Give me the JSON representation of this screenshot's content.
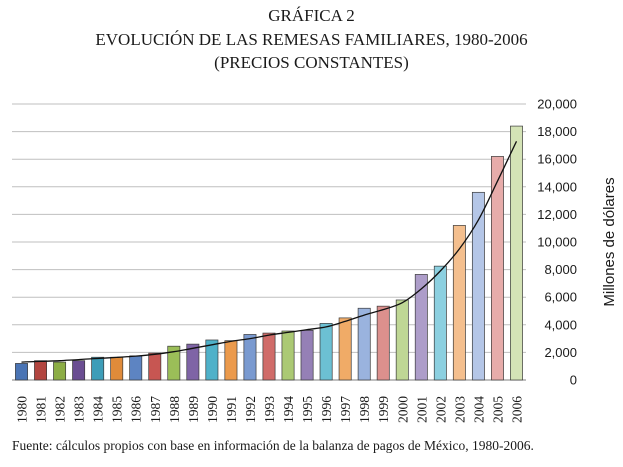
{
  "header": {
    "title_line1": "GRÁFICA 2",
    "title_line2": "EVOLUCIÓN DE LAS REMESAS FAMILIARES, 1980-2006",
    "title_line3": "(PRECIOS CONSTANTES)"
  },
  "source_note": "Fuente: cálculos propios con base en información de la balanza de pagos de México, 1980-2006.",
  "chart_data": {
    "type": "bar",
    "title": "EVOLUCIÓN DE LAS REMESAS FAMILIARES, 1980-2006",
    "xlabel": "",
    "ylabel": "Millones de dólares",
    "ylim": [
      0,
      20000
    ],
    "yticks": [
      0,
      2000,
      4000,
      6000,
      8000,
      10000,
      12000,
      14000,
      16000,
      18000,
      20000
    ],
    "ytick_labels": [
      "0",
      "2,000",
      "4,000",
      "6,000",
      "8,000",
      "10,000",
      "12,000",
      "14,000",
      "16,000",
      "18,000",
      "20,000"
    ],
    "grid": true,
    "categories": [
      "1980",
      "1981",
      "1982",
      "1983",
      "1984",
      "1985",
      "1986",
      "1987",
      "1988",
      "1989",
      "1990",
      "1991",
      "1992",
      "1993",
      "1994",
      "1995",
      "1996",
      "1997",
      "1998",
      "1999",
      "2000",
      "2001",
      "2002",
      "2003",
      "2004",
      "2005",
      "2006"
    ],
    "values": [
      1200,
      1400,
      1300,
      1400,
      1650,
      1650,
      1750,
      1950,
      2450,
      2600,
      2900,
      2850,
      3300,
      3400,
      3550,
      3600,
      4100,
      4500,
      5200,
      5350,
      5800,
      7650,
      8250,
      11200,
      13600,
      16200,
      18400
    ],
    "bar_colors": [
      "#4a74b4",
      "#b2453f",
      "#8cad45",
      "#6a4d92",
      "#3d9db8",
      "#e08b3a",
      "#5d84c2",
      "#c75652",
      "#9bbe58",
      "#7f64a6",
      "#4fb1c9",
      "#eb9a4c",
      "#7a9ad0",
      "#d06c69",
      "#abc974",
      "#9580b6",
      "#6cc0d3",
      "#f0ab67",
      "#9ab3de",
      "#dc908d",
      "#bfd795",
      "#ad9dc9",
      "#8cd0e0",
      "#f4bf8e",
      "#b4c6e7",
      "#e7acaa",
      "#d4e3b6"
    ],
    "trendline": {
      "type": "smooth",
      "values": [
        1300,
        1350,
        1400,
        1480,
        1560,
        1640,
        1730,
        1860,
        2050,
        2300,
        2550,
        2800,
        3000,
        3250,
        3450,
        3650,
        3850,
        4250,
        4700,
        5100,
        5600,
        6600,
        7900,
        9500,
        11600,
        14400,
        17300
      ]
    }
  }
}
